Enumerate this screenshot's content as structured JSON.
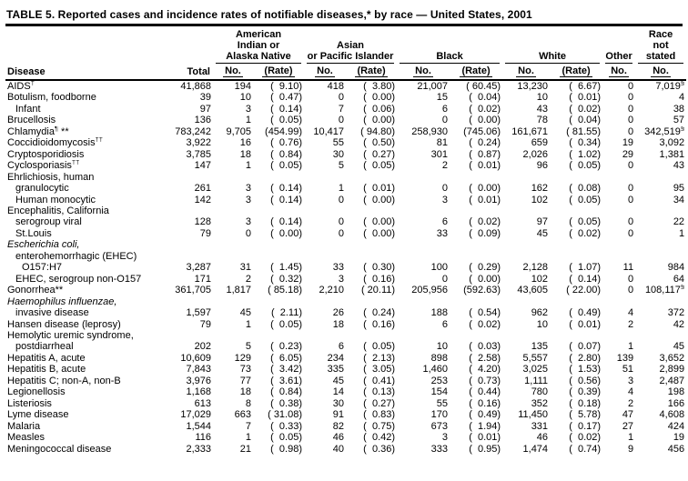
{
  "title": "TABLE 5. Reported cases and incidence rates of notifiable diseases,* by race — United States, 2001",
  "columns": {
    "disease": "Disease",
    "total": "Total",
    "groups": [
      {
        "label": "American\nIndian or\nAlaska Native",
        "no": "No.",
        "rate": "(Rate)"
      },
      {
        "label": "Asian\nor Pacific Islander",
        "no": "No.",
        "rate": "(Rate)"
      },
      {
        "label": "Black",
        "no": "No.",
        "rate": "(Rate)"
      },
      {
        "label": "White",
        "no": "No.",
        "rate": "(Rate)"
      },
      {
        "label": "Other",
        "no": "No."
      },
      {
        "label": "Race\nnot\nstated",
        "no": "No."
      }
    ]
  },
  "rows": [
    {
      "label": "AIDS",
      "sup": "†",
      "indent": 0,
      "italic": false,
      "cells": [
        "41,868",
        "194",
        "(  9.10)",
        "418",
        "(  3.80)",
        "21,007",
        "( 60.45)",
        "13,230",
        "(  6.67)",
        "0",
        "7,019"
      ],
      "ns_sup": "§"
    },
    {
      "label": "Botulism, foodborne",
      "indent": 0,
      "italic": false,
      "cells": [
        "39",
        "10",
        "(  0.47)",
        "0",
        "(  0.00)",
        "15",
        "(  0.04)",
        "10",
        "(  0.01)",
        "0",
        "4"
      ]
    },
    {
      "label": "Infant",
      "indent": 1,
      "italic": false,
      "cells": [
        "97",
        "3",
        "(  0.14)",
        "7",
        "(  0.06)",
        "6",
        "(  0.02)",
        "43",
        "(  0.02)",
        "0",
        "38"
      ]
    },
    {
      "label": "Brucellosis",
      "indent": 0,
      "italic": false,
      "cells": [
        "136",
        "1",
        "(  0.05)",
        "0",
        "(  0.00)",
        "0",
        "(  0.00)",
        "78",
        "(  0.04)",
        "0",
        "57"
      ]
    },
    {
      "label": "Chlamydia",
      "sup": "¶",
      "suffix": " **",
      "indent": 0,
      "italic": false,
      "cells": [
        "783,242",
        "9,705",
        "(454.99)",
        "10,417",
        "( 94.80)",
        "258,930",
        "(745.06)",
        "161,671",
        "( 81.55)",
        "0",
        "342,519"
      ],
      "ns_sup": "§"
    },
    {
      "label": "Coccidioidomycosis",
      "sup": "††",
      "indent": 0,
      "italic": false,
      "cells": [
        "3,922",
        "16",
        "(  0.76)",
        "55",
        "(  0.50)",
        "81",
        "(  0.24)",
        "659",
        "(  0.34)",
        "19",
        "3,092"
      ]
    },
    {
      "label": "Cryptosporidiosis",
      "indent": 0,
      "italic": false,
      "cells": [
        "3,785",
        "18",
        "(  0.84)",
        "30",
        "(  0.27)",
        "301",
        "(  0.87)",
        "2,026",
        "(  1.02)",
        "29",
        "1,381"
      ]
    },
    {
      "label": "Cyclosporiasis",
      "sup": "††",
      "indent": 0,
      "italic": false,
      "cells": [
        "147",
        "1",
        "(  0.05)",
        "5",
        "(  0.05)",
        "2",
        "(  0.01)",
        "96",
        "(  0.05)",
        "0",
        "43"
      ]
    },
    {
      "label": "Ehrlichiosis, human",
      "indent": 0,
      "italic": false,
      "cells": null
    },
    {
      "label": "granulocytic",
      "indent": 1,
      "italic": false,
      "cells": [
        "261",
        "3",
        "(  0.14)",
        "1",
        "(  0.01)",
        "0",
        "(  0.00)",
        "162",
        "(  0.08)",
        "0",
        "95"
      ]
    },
    {
      "label": "Human monocytic",
      "indent": 1,
      "italic": false,
      "cells": [
        "142",
        "3",
        "(  0.14)",
        "0",
        "(  0.00)",
        "3",
        "(  0.01)",
        "102",
        "(  0.05)",
        "0",
        "34"
      ]
    },
    {
      "label": "Encephalitis, California",
      "indent": 0,
      "italic": false,
      "cells": null
    },
    {
      "label": "serogroup viral",
      "indent": 1,
      "italic": false,
      "cells": [
        "128",
        "3",
        "(  0.14)",
        "0",
        "(  0.00)",
        "6",
        "(  0.02)",
        "97",
        "(  0.05)",
        "0",
        "22"
      ]
    },
    {
      "label": "St.Louis",
      "indent": 1,
      "italic": false,
      "cells": [
        "79",
        "0",
        "(  0.00)",
        "0",
        "(  0.00)",
        "33",
        "(  0.09)",
        "45",
        "(  0.02)",
        "0",
        "1"
      ]
    },
    {
      "label": "Escherichia coli,",
      "indent": 0,
      "italic": true,
      "cells": null
    },
    {
      "label": "enterohemorrhagic (EHEC)",
      "indent": 1,
      "italic": false,
      "cells": null
    },
    {
      "label": "O157:H7",
      "indent": 2,
      "italic": false,
      "cells": [
        "3,287",
        "31",
        "(  1.45)",
        "33",
        "(  0.30)",
        "100",
        "(  0.29)",
        "2,128",
        "(  1.07)",
        "11",
        "984"
      ]
    },
    {
      "label": "EHEC, serogroup non-O157",
      "indent": 1,
      "italic": false,
      "cells": [
        "171",
        "2",
        "(  0.32)",
        "3",
        "(  0.16)",
        "0",
        "(  0.00)",
        "102",
        "(  0.14)",
        "0",
        "64"
      ]
    },
    {
      "label": "Gonorrhea",
      "suffix": "**",
      "indent": 0,
      "italic": false,
      "cells": [
        "361,705",
        "1,817",
        "( 85.18)",
        "2,210",
        "( 20.11)",
        "205,956",
        "(592.63)",
        "43,605",
        "( 22.00)",
        "0",
        "108,117"
      ],
      "ns_sup": "§"
    },
    {
      "label": "Haemophilus influenzae,",
      "indent": 0,
      "italic": true,
      "cells": null
    },
    {
      "label": "invasive disease",
      "indent": 1,
      "italic": false,
      "cells": [
        "1,597",
        "45",
        "(  2.11)",
        "26",
        "(  0.24)",
        "188",
        "(  0.54)",
        "962",
        "(  0.49)",
        "4",
        "372"
      ]
    },
    {
      "label": "Hansen disease (leprosy)",
      "indent": 0,
      "italic": false,
      "cells": [
        "79",
        "1",
        "(  0.05)",
        "18",
        "(  0.16)",
        "6",
        "(  0.02)",
        "10",
        "(  0.01)",
        "2",
        "42"
      ]
    },
    {
      "label": "Hemolytic uremic syndrome,",
      "indent": 0,
      "italic": false,
      "cells": null
    },
    {
      "label": "postdiarrheal",
      "indent": 1,
      "italic": false,
      "cells": [
        "202",
        "5",
        "(  0.23)",
        "6",
        "(  0.05)",
        "10",
        "(  0.03)",
        "135",
        "(  0.07)",
        "1",
        "45"
      ]
    },
    {
      "label": "Hepatitis A, acute",
      "indent": 0,
      "italic": false,
      "cells": [
        "10,609",
        "129",
        "(  6.05)",
        "234",
        "(  2.13)",
        "898",
        "(  2.58)",
        "5,557",
        "(  2.80)",
        "139",
        "3,652"
      ]
    },
    {
      "label": "Hepatitis B, acute",
      "indent": 0,
      "italic": false,
      "cells": [
        "7,843",
        "73",
        "(  3.42)",
        "335",
        "(  3.05)",
        "1,460",
        "(  4.20)",
        "3,025",
        "(  1.53)",
        "51",
        "2,899"
      ]
    },
    {
      "label": "Hepatitis C; non-A, non-B",
      "indent": 0,
      "italic": false,
      "cells": [
        "3,976",
        "77",
        "(  3.61)",
        "45",
        "(  0.41)",
        "253",
        "(  0.73)",
        "1,111",
        "(  0.56)",
        "3",
        "2,487"
      ]
    },
    {
      "label": "Legionellosis",
      "indent": 0,
      "italic": false,
      "cells": [
        "1,168",
        "18",
        "(  0.84)",
        "14",
        "(  0.13)",
        "154",
        "(  0.44)",
        "780",
        "(  0.39)",
        "4",
        "198"
      ]
    },
    {
      "label": "Listeriosis",
      "indent": 0,
      "italic": false,
      "cells": [
        "613",
        "8",
        "(  0.38)",
        "30",
        "(  0.27)",
        "55",
        "(  0.16)",
        "352",
        "(  0.18)",
        "2",
        "166"
      ]
    },
    {
      "label": "Lyme disease",
      "indent": 0,
      "italic": false,
      "cells": [
        "17,029",
        "663",
        "( 31.08)",
        "91",
        "(  0.83)",
        "170",
        "(  0.49)",
        "11,450",
        "(  5.78)",
        "47",
        "4,608"
      ]
    },
    {
      "label": "Malaria",
      "indent": 0,
      "italic": false,
      "cells": [
        "1,544",
        "7",
        "(  0.33)",
        "82",
        "(  0.75)",
        "673",
        "(  1.94)",
        "331",
        "(  0.17)",
        "27",
        "424"
      ]
    },
    {
      "label": "Measles",
      "indent": 0,
      "italic": false,
      "cells": [
        "116",
        "1",
        "(  0.05)",
        "46",
        "(  0.42)",
        "3",
        "(  0.01)",
        "46",
        "(  0.02)",
        "1",
        "19"
      ]
    },
    {
      "label": "Meningococcal disease",
      "indent": 0,
      "italic": false,
      "cells": [
        "2,333",
        "21",
        "(  0.98)",
        "40",
        "(  0.36)",
        "333",
        "(  0.95)",
        "1,474",
        "(  0.74)",
        "9",
        "456"
      ]
    }
  ]
}
